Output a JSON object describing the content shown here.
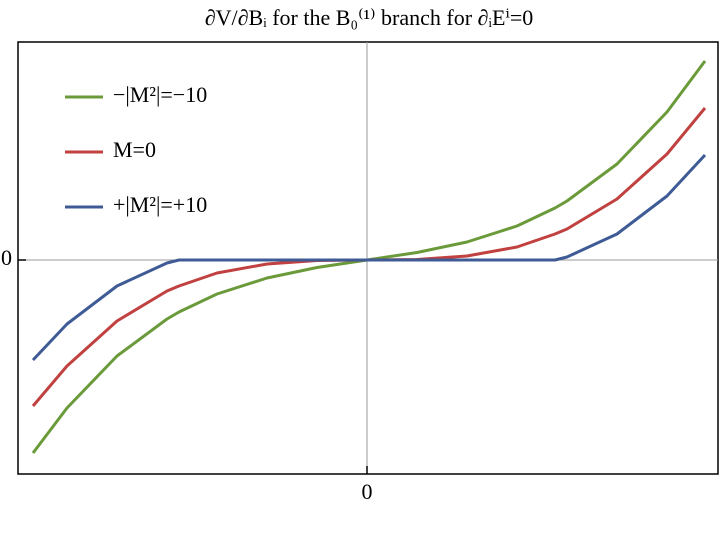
{
  "chart_data": {
    "type": "line",
    "title": "∂V/∂Bᵢ for the B₀⁽¹⁾ branch for ∂ᵢEⁱ=0",
    "x": [
      -3.34,
      -3,
      -2.5,
      -2,
      -1.88,
      -1.5,
      -1,
      -0.5,
      0,
      0.5,
      1,
      1.5,
      1.88,
      2,
      2.5,
      3,
      3.38
    ],
    "series": [
      {
        "name": "−|M²|=−10",
        "color": "#6b9a3a",
        "values": [
          -1.93,
          -1.48,
          -0.96,
          -0.59,
          -0.52,
          -0.34,
          -0.18,
          -0.075,
          0,
          0.075,
          0.18,
          0.34,
          0.52,
          0.59,
          0.96,
          1.48,
          1.99
        ]
      },
      {
        "name": "M=0",
        "color": "#c0413f",
        "values": [
          -1.46,
          -1.06,
          -0.61,
          -0.31,
          -0.26,
          -0.13,
          -0.04,
          -0.005,
          0,
          0.005,
          0.04,
          0.13,
          0.26,
          0.31,
          0.61,
          1.06,
          1.52
        ]
      },
      {
        "name": "+|M²|=+10",
        "color": "#3f5b96",
        "values": [
          -1.0,
          -0.64,
          -0.26,
          -0.03,
          0,
          0,
          0,
          0,
          0,
          0,
          0,
          0,
          0,
          0.03,
          0.26,
          0.64,
          1.05
        ]
      }
    ],
    "xlim": [
      -3.49,
      3.51
    ],
    "ylim": [
      -2.14,
      2.18
    ],
    "xticks": [
      0
    ],
    "yticks": [
      0
    ]
  }
}
